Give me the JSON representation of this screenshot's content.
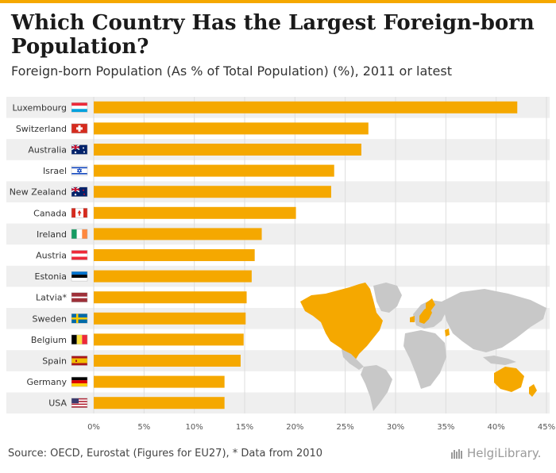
{
  "title": "Which Country Has the Largest Foreign-born Population?",
  "subtitle": "Foreign-born Population (As % of Total Population) (%), 2011 or latest",
  "footer": "Source: OECD, Eurostat (Figures for EU27), * Data from 2010",
  "logo": "HelgiLibrary.",
  "colors": {
    "bar": "#f5a800",
    "band": "#efefef",
    "map_land": "#c8c8c8",
    "map_highlight": "#f5a800"
  },
  "chart_data": {
    "type": "bar",
    "orientation": "horizontal",
    "title": "Which Country Has the Largest Foreign-born Population?",
    "subtitle": "Foreign-born Population (As % of Total Population) (%), 2011 or latest",
    "xlabel": "",
    "ylabel": "",
    "xlim": [
      0,
      45
    ],
    "grid": true,
    "tick_labels": [
      "0%",
      "5%",
      "10%",
      "15%",
      "20%",
      "25%",
      "30%",
      "35%",
      "40%",
      "45%"
    ],
    "categories": [
      "Luxembourg",
      "Switzerland",
      "Australia",
      "Israel",
      "New Zealand",
      "Canada",
      "Ireland",
      "Austria",
      "Estonia",
      "Latvia*",
      "Sweden",
      "Belgium",
      "Spain",
      "Germany",
      "USA"
    ],
    "flags": [
      "luxembourg-flag",
      "switzerland-flag",
      "australia-flag",
      "israel-flag",
      "new-zealand-flag",
      "canada-flag",
      "ireland-flag",
      "austria-flag",
      "estonia-flag",
      "latvia-flag",
      "sweden-flag",
      "belgium-flag",
      "spain-flag",
      "germany-flag",
      "usa-flag"
    ],
    "values": [
      42.1,
      27.3,
      26.6,
      23.9,
      23.6,
      20.1,
      16.7,
      16.0,
      15.7,
      15.2,
      15.1,
      14.9,
      14.6,
      13.0,
      13.0
    ]
  }
}
